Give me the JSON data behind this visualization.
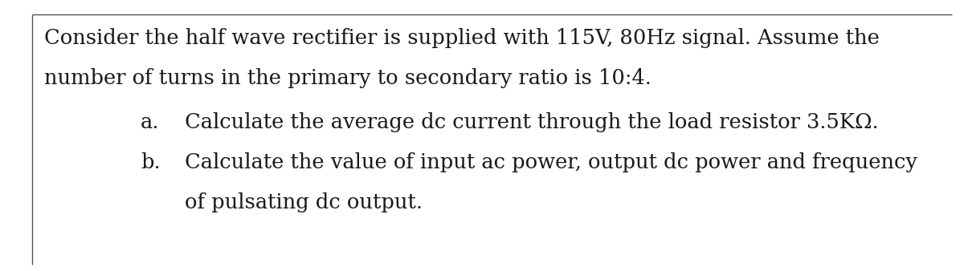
{
  "background_color": "#ffffff",
  "border_color": "#555555",
  "line1": "Consider the half wave rectifier is supplied with 115V, 80Hz signal. Assume the",
  "line2": "number of turns in the primary to secondary ratio is 10:4.",
  "item_a_label": "a.",
  "item_a_text": "Calculate the average dc current through the load resistor 3.5KΩ.",
  "item_b_label": "b.",
  "item_b_text1": "Calculate the value of input ac power, output dc power and frequency",
  "item_b_text2": "of pulsating dc output.",
  "font_size": 18.5,
  "font_family": "DejaVu Serif",
  "text_color": "#1a1a1a",
  "fig_width": 12.0,
  "fig_height": 3.38,
  "dpi": 100
}
